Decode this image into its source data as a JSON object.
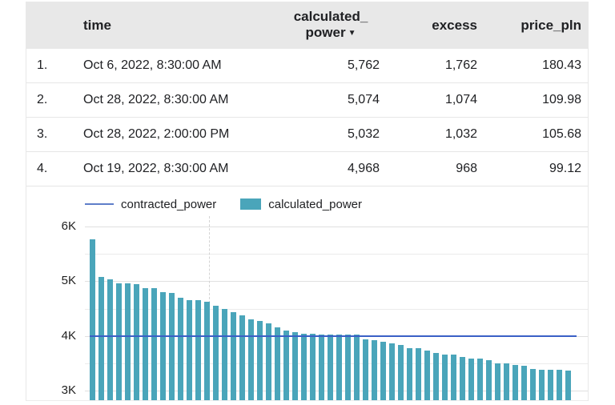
{
  "table": {
    "header": {
      "time": "time",
      "calc_line1": "calculated_",
      "calc_line2": "power",
      "sort_arrow": "▼",
      "excess": "excess",
      "price": "price_pln"
    },
    "rows": [
      {
        "num": "1.",
        "time": "Oct 6, 2022, 8:30:00 AM",
        "calculated_power": "5,762",
        "excess": "1,762",
        "price_pln": "180.43"
      },
      {
        "num": "2.",
        "time": "Oct 28, 2022, 8:30:00 AM",
        "calculated_power": "5,074",
        "excess": "1,074",
        "price_pln": "109.98"
      },
      {
        "num": "3.",
        "time": "Oct 28, 2022, 2:00:00 PM",
        "calculated_power": "5,032",
        "excess": "1,032",
        "price_pln": "105.68"
      },
      {
        "num": "4.",
        "time": "Oct 19, 2022, 8:30:00 AM",
        "calculated_power": "4,968",
        "excess": "968",
        "price_pln": "99.12"
      }
    ]
  },
  "legend": [
    {
      "label": "contracted_power",
      "type": "line",
      "color": "#5F7EC9"
    },
    {
      "label": "calculated_power",
      "type": "bar",
      "color": "#4AA5BA"
    }
  ],
  "colors": {
    "header_bg": "#e8e8e8",
    "bar": "#4AA5BA",
    "line": "#3A60C6",
    "text": "#202124"
  },
  "chart_data": {
    "type": "bar",
    "title": "",
    "xlabel": "",
    "ylabel": "",
    "x_axis_labels_visible": false,
    "legend_position": "top",
    "grid": true,
    "ylim_visible": [
      2807,
      6193
    ],
    "yticks": [
      {
        "label": "6K",
        "value": 6000
      },
      {
        "label": "5K",
        "value": 5000
      },
      {
        "label": "4K",
        "value": 4000
      },
      {
        "label": "3K",
        "value": 3000
      }
    ],
    "minor_gridlines": [
      5500,
      4500,
      3500
    ],
    "x_dashed_gridline_frac": 0.245,
    "series": [
      {
        "name": "calculated_power",
        "type": "bar",
        "color": "#4AA5BA",
        "values": [
          5762,
          5074,
          5032,
          4968,
          4960,
          4952,
          4878,
          4870,
          4800,
          4792,
          4700,
          4660,
          4652,
          4618,
          4550,
          4498,
          4440,
          4370,
          4300,
          4280,
          4230,
          4150,
          4100,
          4068,
          4042,
          4034,
          4030,
          4028,
          4026,
          4024,
          4020,
          3930,
          3920,
          3898,
          3870,
          3840,
          3782,
          3778,
          3738,
          3690,
          3662,
          3658,
          3612,
          3590,
          3578,
          3548,
          3500,
          3490,
          3462,
          3450,
          3392,
          3386,
          3380,
          3374,
          3370
        ]
      },
      {
        "name": "contracted_power",
        "type": "line",
        "color": "#3A60C6",
        "constant_value": 4000
      }
    ]
  }
}
